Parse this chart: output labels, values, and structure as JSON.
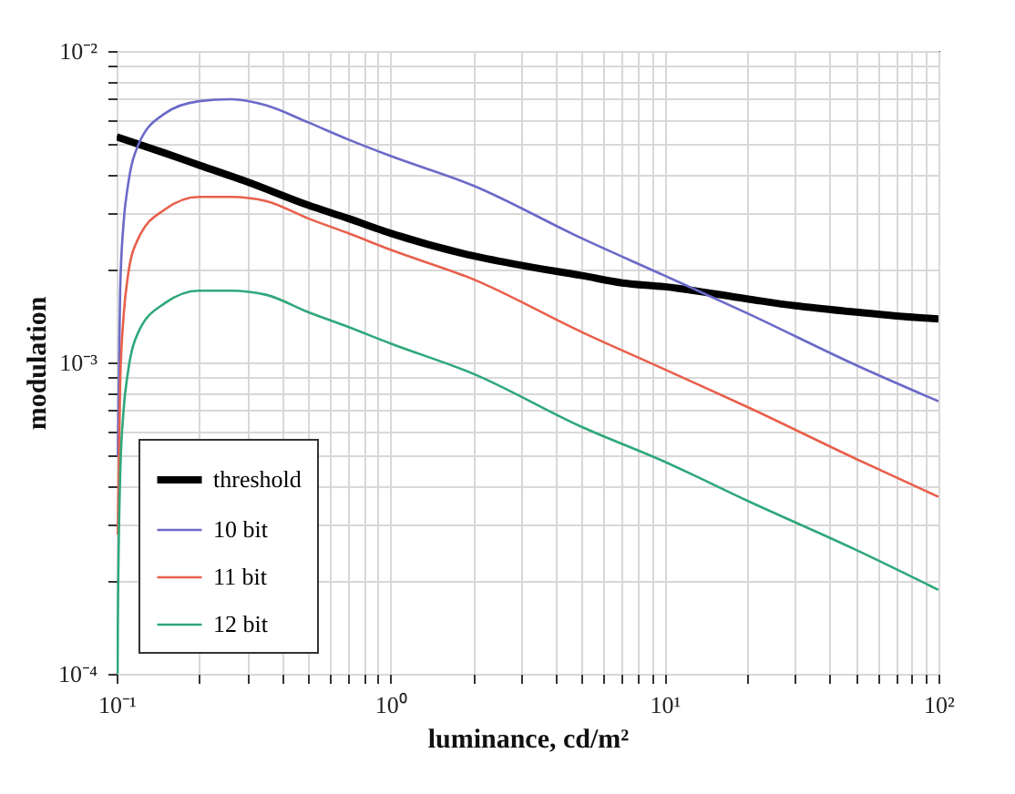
{
  "chart_data": {
    "type": "line",
    "xlabel": "luminance, cd/m²",
    "ylabel": "modulation",
    "log": "xy",
    "grid": true,
    "legend": "bottom left",
    "line_style": "solid",
    "xlim": [
      0.1,
      100
    ],
    "ylim": [
      0.0001,
      0.01
    ],
    "xticks": [
      {
        "value": 0.1,
        "label": "10⁻¹"
      },
      {
        "value": 0.2,
        "label": null
      },
      {
        "value": 0.3,
        "label": null
      },
      {
        "value": 0.4,
        "label": null
      },
      {
        "value": 0.5,
        "label": null
      },
      {
        "value": 0.6,
        "label": null
      },
      {
        "value": 0.7,
        "label": null
      },
      {
        "value": 0.8,
        "label": null
      },
      {
        "value": 0.9,
        "label": null
      },
      {
        "value": 1,
        "label": "10⁰"
      },
      {
        "value": 2,
        "label": null
      },
      {
        "value": 3,
        "label": null
      },
      {
        "value": 4,
        "label": null
      },
      {
        "value": 5,
        "label": null
      },
      {
        "value": 6,
        "label": null
      },
      {
        "value": 7,
        "label": null
      },
      {
        "value": 8,
        "label": null
      },
      {
        "value": 9,
        "label": null
      },
      {
        "value": 10,
        "label": "10¹"
      },
      {
        "value": 20,
        "label": null
      },
      {
        "value": 30,
        "label": null
      },
      {
        "value": 40,
        "label": null
      },
      {
        "value": 50,
        "label": null
      },
      {
        "value": 60,
        "label": null
      },
      {
        "value": 70,
        "label": null
      },
      {
        "value": 80,
        "label": null
      },
      {
        "value": 90,
        "label": null
      },
      {
        "value": 100,
        "label": "10²"
      }
    ],
    "yticks": [
      {
        "value": 0.0001,
        "label": "10⁻⁴"
      },
      {
        "value": 0.0002,
        "label": null
      },
      {
        "value": 0.0003,
        "label": null
      },
      {
        "value": 0.0004,
        "label": null
      },
      {
        "value": 0.0005,
        "label": null
      },
      {
        "value": 0.0006,
        "label": null
      },
      {
        "value": 0.0007,
        "label": null
      },
      {
        "value": 0.0008,
        "label": null
      },
      {
        "value": 0.0009,
        "label": null
      },
      {
        "value": 0.001,
        "label": "10⁻³"
      },
      {
        "value": 0.002,
        "label": null
      },
      {
        "value": 0.003,
        "label": null
      },
      {
        "value": 0.004,
        "label": null
      },
      {
        "value": 0.005,
        "label": null
      },
      {
        "value": 0.006,
        "label": null
      },
      {
        "value": 0.007,
        "label": null
      },
      {
        "value": 0.008,
        "label": null
      },
      {
        "value": 0.009,
        "label": null
      },
      {
        "value": 0.01,
        "label": "10⁻²"
      }
    ],
    "series": [
      {
        "name": "threshold",
        "color": "#000000",
        "x": [
          0.1,
          0.15,
          0.2,
          0.3,
          0.5,
          0.7,
          1,
          2,
          3,
          5,
          7,
          10,
          20,
          30,
          50,
          70,
          100
        ],
        "values": [
          0.0053,
          0.0047,
          0.0043,
          0.0038,
          0.0032,
          0.0029,
          0.0026,
          0.0022,
          0.00205,
          0.0019,
          0.0018,
          0.00175,
          0.0016,
          0.00152,
          0.00145,
          0.00141,
          0.00138
        ]
      },
      {
        "name": "10 bit",
        "color": "#6a6ac8",
        "x": [
          0.101,
          0.103,
          0.106,
          0.11,
          0.12,
          0.15,
          0.2,
          0.26,
          0.35,
          0.5,
          0.7,
          1,
          2,
          5,
          10,
          20,
          50,
          100
        ],
        "values": [
          0.0005,
          0.0017,
          0.0028,
          0.0037,
          0.005,
          0.0063,
          0.0069,
          0.007,
          0.0067,
          0.0059,
          0.0052,
          0.0046,
          0.0037,
          0.0025,
          0.0019,
          0.00144,
          0.00098,
          0.00075
        ]
      },
      {
        "name": "11 bit",
        "color": "#e8604c",
        "x": [
          0.101,
          0.103,
          0.106,
          0.11,
          0.12,
          0.15,
          0.2,
          0.26,
          0.35,
          0.5,
          0.7,
          1,
          2,
          5,
          10,
          20,
          50,
          100
        ],
        "values": [
          0.00028,
          0.00085,
          0.0014,
          0.0019,
          0.0025,
          0.0031,
          0.0034,
          0.0034,
          0.0033,
          0.0029,
          0.0026,
          0.0023,
          0.00185,
          0.00125,
          0.00095,
          0.00072,
          0.00049,
          0.00037
        ]
      },
      {
        "name": "12 bit",
        "color": "#2fa87a",
        "x": [
          0.1008,
          0.101,
          0.103,
          0.106,
          0.11,
          0.12,
          0.15,
          0.2,
          0.26,
          0.35,
          0.5,
          0.7,
          1,
          2,
          5,
          10,
          20,
          50,
          100
        ],
        "values": [
          0.0001,
          0.00014,
          0.00043,
          0.0007,
          0.00093,
          0.00125,
          0.00155,
          0.0017,
          0.0017,
          0.00165,
          0.00145,
          0.0013,
          0.00115,
          0.00092,
          0.00062,
          0.00048,
          0.00036,
          0.00025,
          0.000186
        ]
      }
    ]
  }
}
